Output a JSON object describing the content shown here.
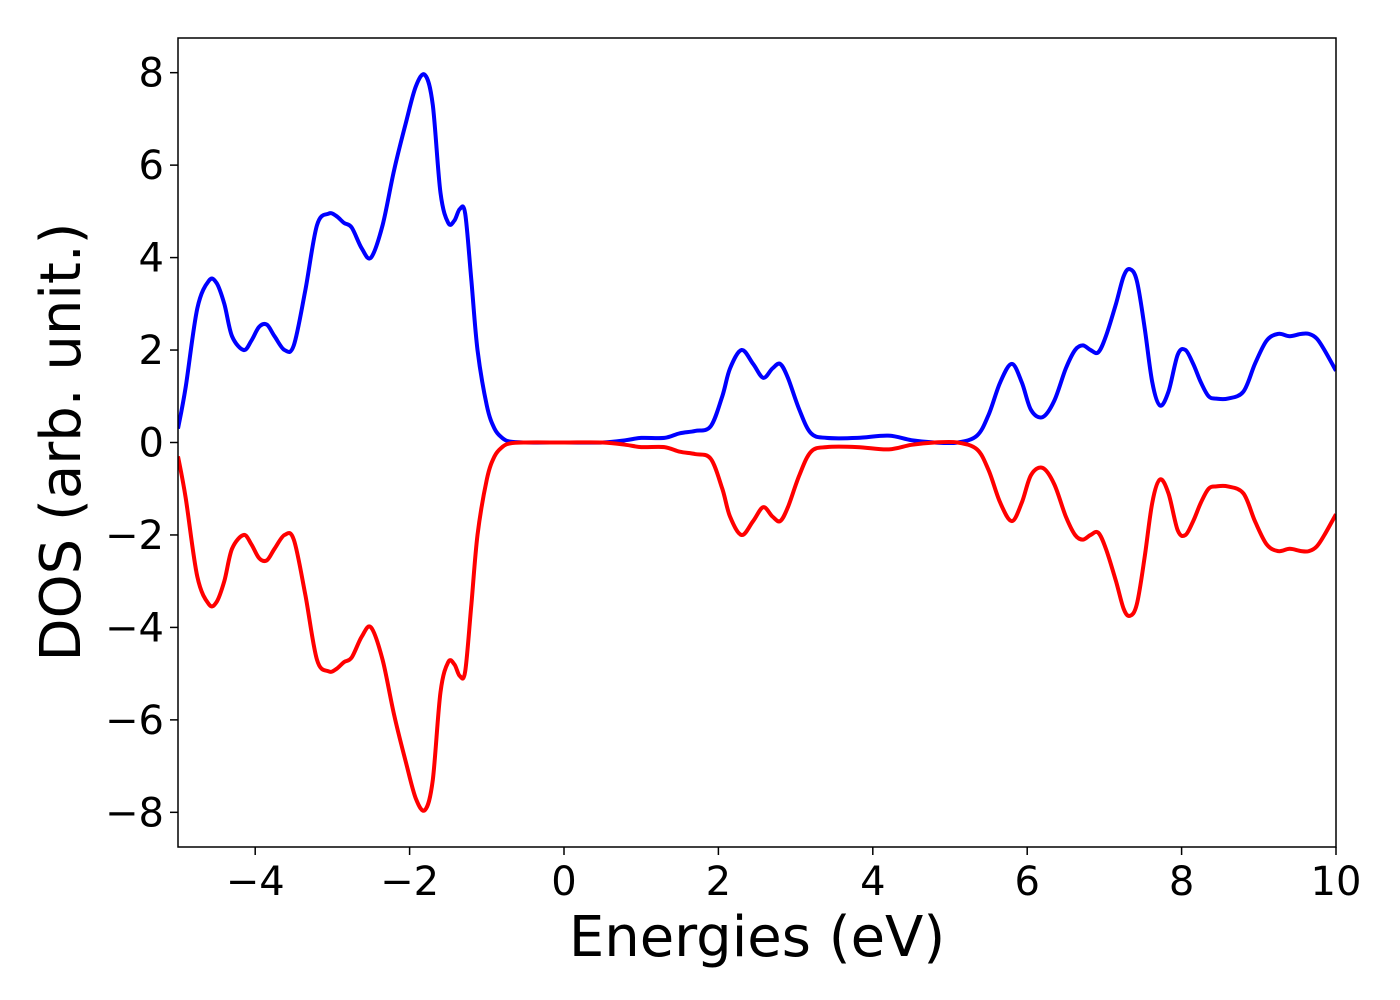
{
  "chart_data": {
    "type": "line",
    "title": "",
    "xlabel": "Energies (eV)",
    "ylabel": "DOS (arb. unit.)",
    "xlim": [
      -5,
      10
    ],
    "ylim": [
      -8.75,
      8.75
    ],
    "xticks": [
      -4,
      -2,
      0,
      2,
      4,
      6,
      8,
      10
    ],
    "yticks": [
      -8,
      -6,
      -4,
      -2,
      0,
      2,
      4,
      6,
      8
    ],
    "xtick_labels": [
      "−4",
      "−2",
      "0",
      "2",
      "4",
      "6",
      "8",
      "10"
    ],
    "ytick_labels": [
      "−8",
      "−6",
      "−4",
      "−2",
      "0",
      "2",
      "4",
      "6",
      "8"
    ],
    "grid": false,
    "legend": "none",
    "series": [
      {
        "color": "#0000ff",
        "x": [
          -5.0,
          -4.9,
          -4.75,
          -4.6,
          -4.5,
          -4.4,
          -4.3,
          -4.15,
          -4.05,
          -3.95,
          -3.85,
          -3.75,
          -3.62,
          -3.5,
          -3.35,
          -3.2,
          -3.05,
          -2.95,
          -2.85,
          -2.75,
          -2.62,
          -2.5,
          -2.35,
          -2.2,
          -2.05,
          -1.92,
          -1.8,
          -1.7,
          -1.6,
          -1.5,
          -1.42,
          -1.35,
          -1.28,
          -1.2,
          -1.12,
          -1.0,
          -0.9,
          -0.8,
          -0.7,
          -0.5,
          0.0,
          0.5,
          0.8,
          1.0,
          1.3,
          1.5,
          1.7,
          1.9,
          2.05,
          2.15,
          2.3,
          2.45,
          2.58,
          2.7,
          2.8,
          2.9,
          3.05,
          3.2,
          3.4,
          3.8,
          4.2,
          4.5,
          4.8,
          5.1,
          5.35,
          5.5,
          5.65,
          5.8,
          5.93,
          6.05,
          6.2,
          6.35,
          6.5,
          6.62,
          6.72,
          6.82,
          6.92,
          7.02,
          7.15,
          7.25,
          7.33,
          7.42,
          7.52,
          7.62,
          7.72,
          7.83,
          7.95,
          8.05,
          8.15,
          8.25,
          8.35,
          8.45,
          8.6,
          8.8,
          8.95,
          9.1,
          9.25,
          9.4,
          9.55,
          9.65,
          9.75,
          9.85,
          10.0
        ],
        "y": [
          0.3,
          1.2,
          2.9,
          3.5,
          3.45,
          3.0,
          2.3,
          2.0,
          2.2,
          2.5,
          2.55,
          2.3,
          2.0,
          2.1,
          3.3,
          4.7,
          4.95,
          4.9,
          4.75,
          4.65,
          4.2,
          4.0,
          4.7,
          5.9,
          6.9,
          7.7,
          7.95,
          7.3,
          5.4,
          4.75,
          4.8,
          5.05,
          4.95,
          3.5,
          2.0,
          0.8,
          0.3,
          0.1,
          0.02,
          0.0,
          0.0,
          0.0,
          0.05,
          0.1,
          0.1,
          0.2,
          0.25,
          0.35,
          1.0,
          1.6,
          2.0,
          1.7,
          1.4,
          1.6,
          1.7,
          1.4,
          0.7,
          0.2,
          0.1,
          0.1,
          0.15,
          0.05,
          0.0,
          0.0,
          0.15,
          0.6,
          1.3,
          1.7,
          1.3,
          0.7,
          0.55,
          0.9,
          1.6,
          2.0,
          2.1,
          2.0,
          1.95,
          2.3,
          3.0,
          3.6,
          3.75,
          3.5,
          2.5,
          1.3,
          0.8,
          1.1,
          1.9,
          2.0,
          1.7,
          1.3,
          1.0,
          0.95,
          0.95,
          1.1,
          1.7,
          2.2,
          2.35,
          2.3,
          2.35,
          2.35,
          2.25,
          2.0,
          1.55
        ]
      },
      {
        "color": "#ff0000",
        "x": [
          -5.0,
          -4.9,
          -4.75,
          -4.6,
          -4.5,
          -4.4,
          -4.3,
          -4.15,
          -4.05,
          -3.95,
          -3.85,
          -3.75,
          -3.62,
          -3.5,
          -3.35,
          -3.2,
          -3.05,
          -2.95,
          -2.85,
          -2.75,
          -2.62,
          -2.5,
          -2.35,
          -2.2,
          -2.05,
          -1.92,
          -1.8,
          -1.7,
          -1.6,
          -1.5,
          -1.42,
          -1.35,
          -1.28,
          -1.2,
          -1.12,
          -1.0,
          -0.9,
          -0.8,
          -0.7,
          -0.5,
          0.0,
          0.5,
          0.8,
          1.0,
          1.3,
          1.5,
          1.7,
          1.9,
          2.05,
          2.15,
          2.3,
          2.45,
          2.58,
          2.7,
          2.8,
          2.9,
          3.05,
          3.2,
          3.4,
          3.8,
          4.2,
          4.5,
          4.8,
          5.1,
          5.35,
          5.5,
          5.65,
          5.8,
          5.93,
          6.05,
          6.2,
          6.35,
          6.5,
          6.62,
          6.72,
          6.82,
          6.92,
          7.02,
          7.15,
          7.25,
          7.33,
          7.42,
          7.52,
          7.62,
          7.72,
          7.83,
          7.95,
          8.05,
          8.15,
          8.25,
          8.35,
          8.45,
          8.6,
          8.8,
          8.95,
          9.1,
          9.25,
          9.4,
          9.55,
          9.65,
          9.75,
          9.85,
          10.0
        ],
        "y": [
          -0.3,
          -1.2,
          -2.9,
          -3.5,
          -3.45,
          -3.0,
          -2.3,
          -2.0,
          -2.2,
          -2.5,
          -2.55,
          -2.3,
          -2.0,
          -2.1,
          -3.3,
          -4.7,
          -4.95,
          -4.9,
          -4.75,
          -4.65,
          -4.2,
          -4.0,
          -4.7,
          -5.9,
          -6.9,
          -7.7,
          -7.95,
          -7.3,
          -5.4,
          -4.75,
          -4.8,
          -5.05,
          -4.95,
          -3.5,
          -2.0,
          -0.8,
          -0.3,
          -0.1,
          -0.02,
          0.0,
          0.0,
          0.0,
          -0.05,
          -0.1,
          -0.1,
          -0.2,
          -0.25,
          -0.35,
          -1.0,
          -1.6,
          -2.0,
          -1.7,
          -1.4,
          -1.6,
          -1.7,
          -1.4,
          -0.7,
          -0.2,
          -0.1,
          -0.1,
          -0.15,
          -0.05,
          0.0,
          0.0,
          -0.15,
          -0.6,
          -1.3,
          -1.7,
          -1.3,
          -0.7,
          -0.55,
          -0.9,
          -1.6,
          -2.0,
          -2.1,
          -2.0,
          -1.95,
          -2.3,
          -3.0,
          -3.6,
          -3.75,
          -3.5,
          -2.5,
          -1.3,
          -0.8,
          -1.1,
          -1.9,
          -2.0,
          -1.7,
          -1.3,
          -1.0,
          -0.95,
          -0.95,
          -1.1,
          -1.7,
          -2.2,
          -2.35,
          -2.3,
          -2.35,
          -2.35,
          -2.25,
          -2.0,
          -1.55
        ]
      }
    ]
  }
}
